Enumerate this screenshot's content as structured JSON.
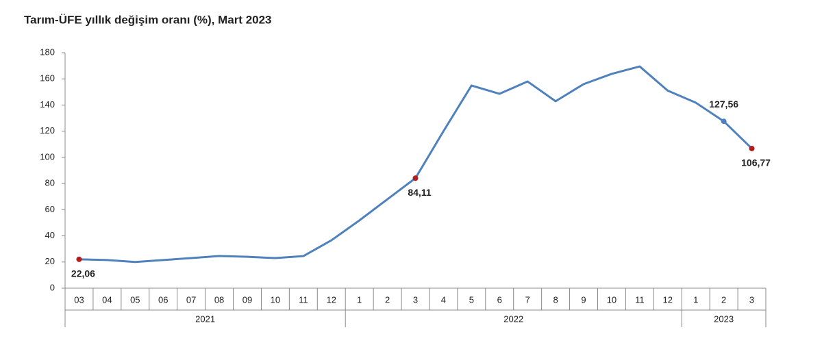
{
  "chart_data": {
    "type": "line",
    "title": "Tarım-ÜFE yıllık değişim oranı (%), Mart 2023",
    "groups": [
      {
        "name": "2021",
        "categories": [
          "03",
          "04",
          "05",
          "06",
          "07",
          "08",
          "09",
          "10",
          "11",
          "12"
        ]
      },
      {
        "name": "2022",
        "categories": [
          "1",
          "2",
          "3",
          "4",
          "5",
          "6",
          "7",
          "8",
          "9",
          "10",
          "11",
          "12"
        ]
      },
      {
        "name": "2023",
        "categories": [
          "1",
          "2",
          "3"
        ]
      }
    ],
    "values": [
      22.06,
      21.5,
      20,
      21.5,
      23,
      24.6,
      24,
      23,
      24.5,
      36.6,
      51.8,
      68,
      84.11,
      120,
      154.9,
      148.6,
      158,
      142.9,
      156,
      163.8,
      169.5,
      151,
      141.8,
      127.56,
      106.77
    ],
    "value_labels": [
      "22,06",
      null,
      null,
      null,
      null,
      null,
      null,
      null,
      null,
      null,
      null,
      null,
      "84,11",
      null,
      null,
      null,
      null,
      null,
      null,
      null,
      null,
      null,
      null,
      "127,56",
      "106,77"
    ],
    "marker_colors": [
      "#b01e1e",
      null,
      null,
      null,
      null,
      null,
      null,
      null,
      null,
      null,
      null,
      null,
      "#b01e1e",
      null,
      null,
      null,
      null,
      null,
      null,
      null,
      null,
      null,
      null,
      "#4f81bd",
      "#b01e1e"
    ],
    "color": "#4f81bd",
    "ylim": [
      0,
      180
    ],
    "yticks": [
      0,
      20,
      40,
      60,
      80,
      100,
      120,
      140,
      160,
      180
    ],
    "grid": false
  }
}
